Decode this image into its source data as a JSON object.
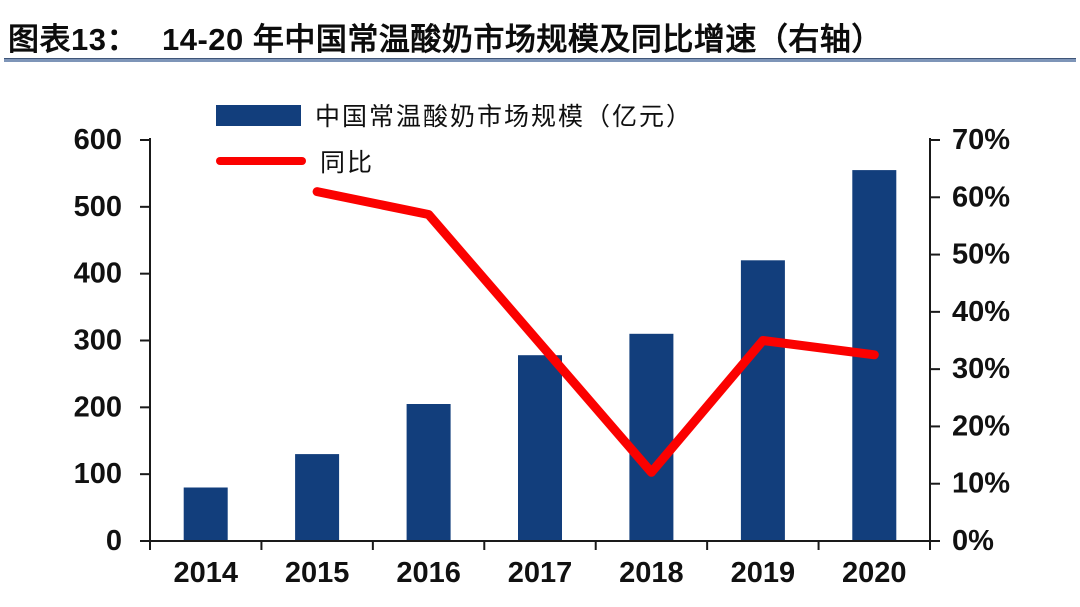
{
  "title": {
    "prefix": "图表13：",
    "text": "14-20 年中国常温酸奶市场规模及同比增速（右轴）"
  },
  "colors": {
    "bar": "#123e7c",
    "line": "#fb0100",
    "axis": "#1a1a1a",
    "label_text": "#111111",
    "divider": "#7e95b8",
    "background": "#ffffff"
  },
  "chart_data": {
    "type": "bar",
    "subtype": "bar+line combo, dual axis",
    "categories": [
      "2014",
      "2015",
      "2016",
      "2017",
      "2018",
      "2019",
      "2020"
    ],
    "series": [
      {
        "name": "中国常温酸奶市场规模（亿元）",
        "type": "bar",
        "axis": "left",
        "values": [
          80,
          130,
          205,
          278,
          310,
          420,
          555
        ],
        "color": "#123e7c"
      },
      {
        "name": "同比",
        "type": "line",
        "axis": "right",
        "unit": "%",
        "values": [
          null,
          61,
          57,
          34.5,
          12,
          35,
          32.5
        ],
        "color": "#fb0100"
      }
    ],
    "left_axis": {
      "min": 0,
      "max": 600,
      "step": 100,
      "tick_labels": [
        "0",
        "100",
        "200",
        "300",
        "400",
        "500",
        "600"
      ]
    },
    "right_axis": {
      "min": 0,
      "max": 70,
      "step": 10,
      "unit": "%",
      "tick_labels": [
        "0%",
        "10%",
        "20%",
        "30%",
        "40%",
        "50%",
        "60%",
        "70%"
      ]
    },
    "grid": false,
    "legend_position": "top"
  }
}
